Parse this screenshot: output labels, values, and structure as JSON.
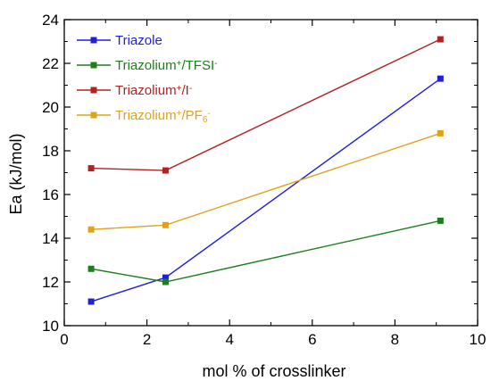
{
  "chart_data": {
    "type": "line",
    "xlabel": "mol % of crosslinker",
    "ylabel": "Ea (kJ/mol)",
    "xlim": [
      0,
      10
    ],
    "ylim": [
      10,
      24
    ],
    "xticks": [
      0,
      2,
      4,
      6,
      8,
      10
    ],
    "yticks": [
      10,
      12,
      14,
      16,
      18,
      20,
      22,
      24
    ],
    "grid": false,
    "legend_position": "top-left",
    "x": [
      0.65,
      2.45,
      9.1
    ],
    "series": [
      {
        "name": "Triazole",
        "legend": [
          {
            "t": "Triazole"
          }
        ],
        "color": "#1f1fdc",
        "marker": "square",
        "values": [
          11.1,
          12.2,
          21.3
        ]
      },
      {
        "name": "Triazolium+/TFSI-",
        "legend": [
          {
            "t": "Triazolium"
          },
          {
            "t": "+",
            "sup": true
          },
          {
            "t": "/TFSI"
          },
          {
            "t": "-",
            "sup": true
          }
        ],
        "color": "#1e7d1e",
        "marker": "square",
        "values": [
          12.6,
          12.0,
          14.8
        ]
      },
      {
        "name": "Triazolium+/I-",
        "legend": [
          {
            "t": "Triazolium"
          },
          {
            "t": "+",
            "sup": true
          },
          {
            "t": "/I"
          },
          {
            "t": "-",
            "sup": true
          }
        ],
        "color": "#b22222",
        "marker": "square",
        "values": [
          17.2,
          17.1,
          23.1
        ]
      },
      {
        "name": "Triazolium+/PF6-",
        "legend": [
          {
            "t": "Triazolium"
          },
          {
            "t": "+",
            "sup": true
          },
          {
            "t": "/PF"
          },
          {
            "t": "6",
            "sub": true
          },
          {
            "t": "-",
            "sup": true
          }
        ],
        "color": "#e0a21a",
        "marker": "square",
        "values": [
          14.4,
          14.6,
          18.8
        ]
      }
    ]
  }
}
